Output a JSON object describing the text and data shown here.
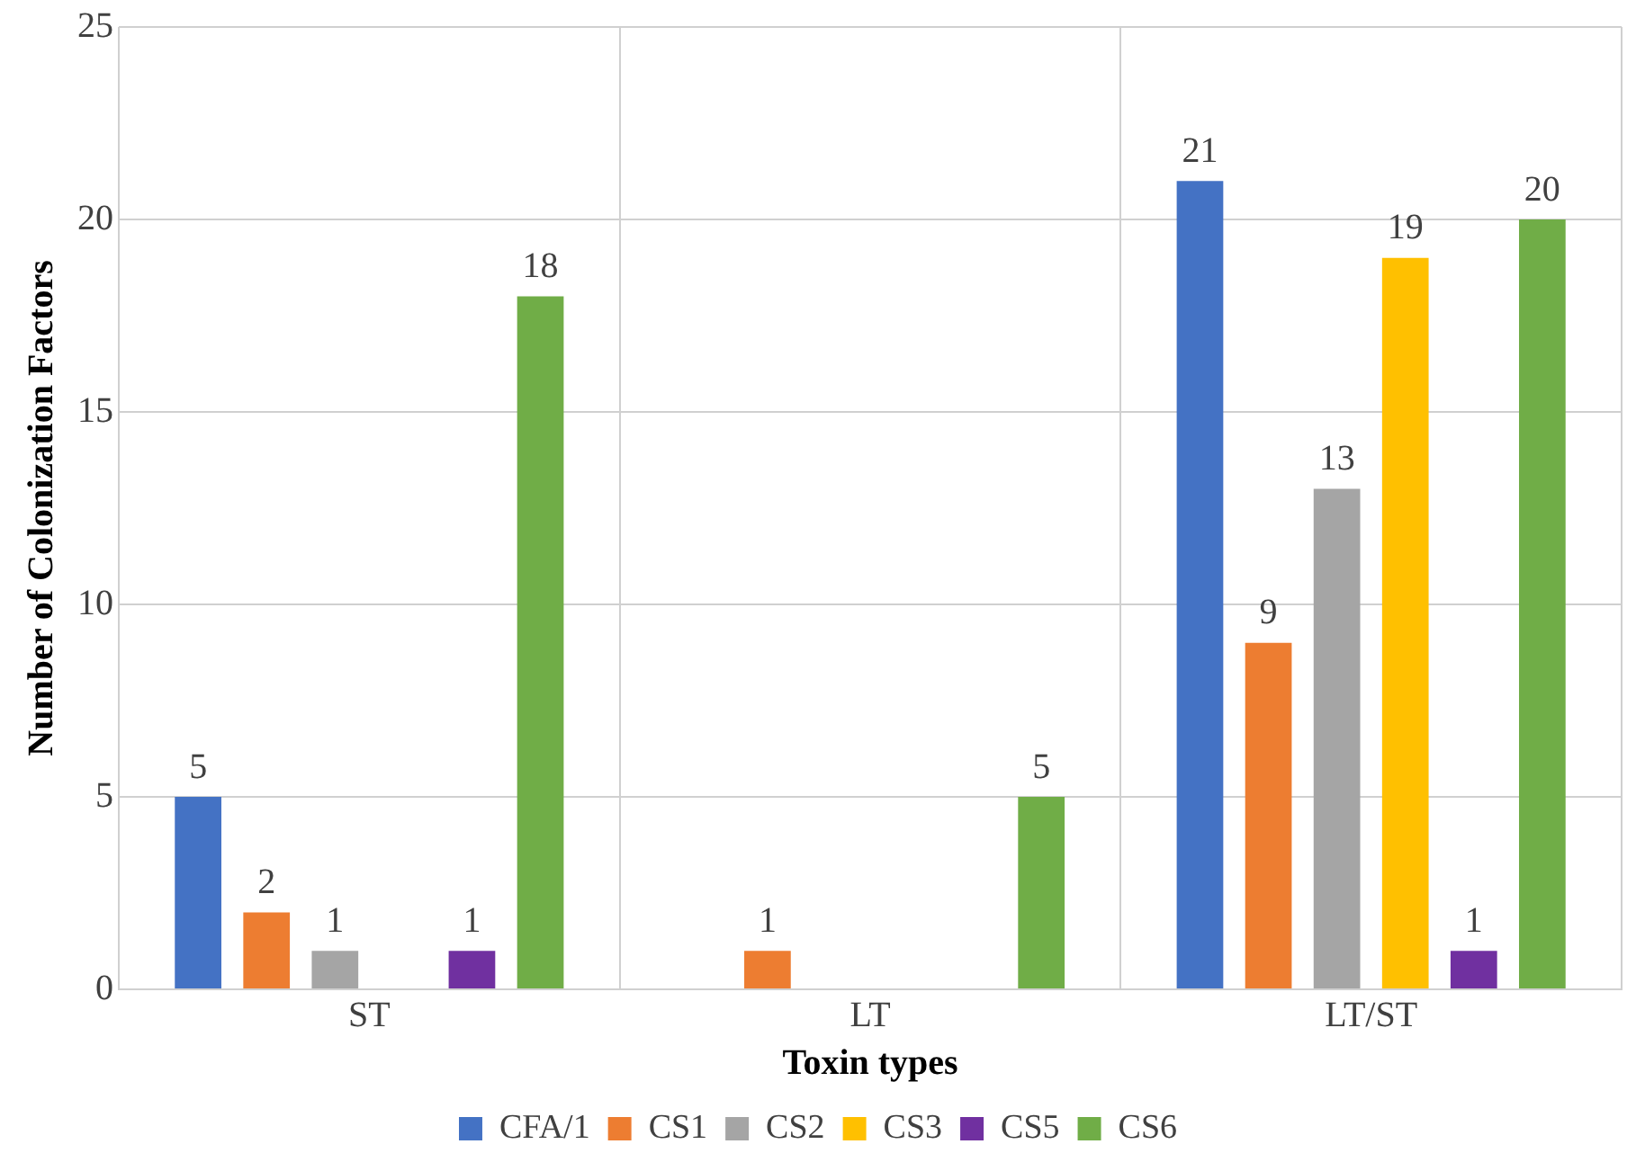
{
  "chart_data": {
    "type": "bar",
    "xlabel": "Toxin types",
    "ylabel": "Number of Colonization Factors",
    "categories": [
      "ST",
      "LT",
      "LT/ST"
    ],
    "series": [
      {
        "name": "CFA/1",
        "color": "#4472c4",
        "values": [
          5,
          0,
          21
        ],
        "value_labels": [
          "5",
          null,
          "21"
        ]
      },
      {
        "name": "CS1",
        "color": "#ed7d31",
        "values": [
          2,
          1,
          9
        ],
        "value_labels": [
          "2",
          "1",
          "9"
        ]
      },
      {
        "name": "CS2",
        "color": "#a5a5a5",
        "values": [
          1,
          0,
          13
        ],
        "value_labels": [
          "1",
          null,
          "13"
        ]
      },
      {
        "name": "CS3",
        "color": "#ffc000",
        "values": [
          0,
          0,
          19
        ],
        "value_labels": [
          null,
          null,
          "19"
        ]
      },
      {
        "name": "CS5",
        "color": "#7030a0",
        "values": [
          1,
          0,
          1
        ],
        "value_labels": [
          "1",
          null,
          "1"
        ]
      },
      {
        "name": "CS6",
        "color": "#70ad47",
        "values": [
          18,
          5,
          20
        ],
        "value_labels": [
          "18",
          "5",
          "20"
        ]
      }
    ],
    "ylim": [
      0,
      25
    ],
    "yticks": [
      0,
      5,
      10,
      15,
      20,
      25
    ],
    "grid": true,
    "legend": "bottom"
  }
}
